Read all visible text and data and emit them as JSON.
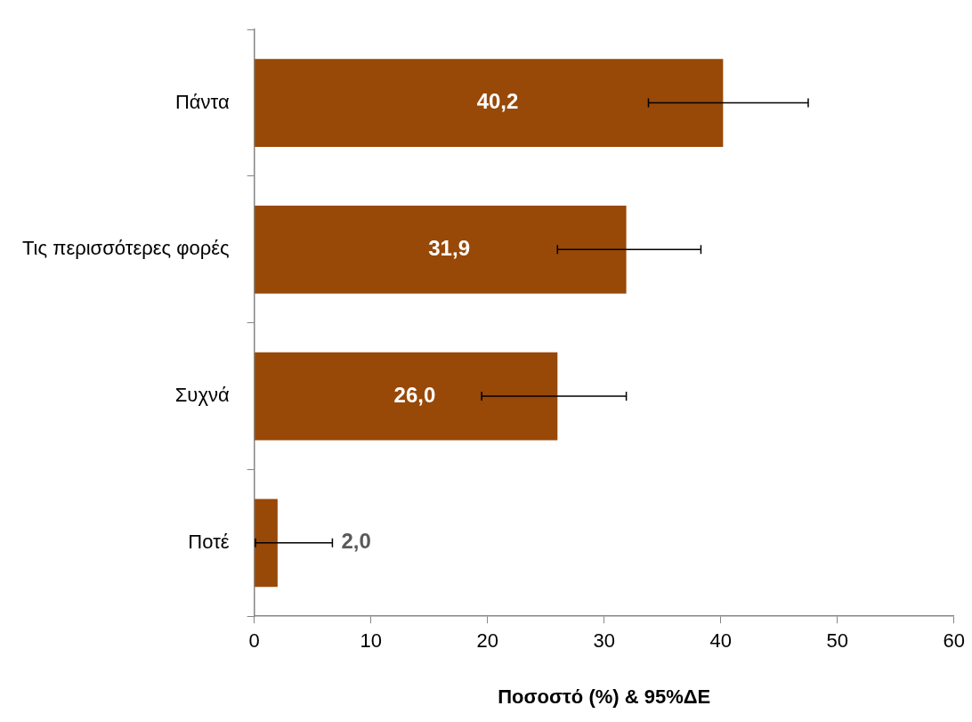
{
  "chart_data": {
    "type": "bar",
    "orientation": "horizontal",
    "xlabel": "Ποσοστό (%) & 95%ΔΕ",
    "categories": [
      "Πάντα",
      "Τις περισσότερες φορές",
      "Συχνά",
      "Ποτέ"
    ],
    "values": [
      40.2,
      31.9,
      26.0,
      2.0
    ],
    "value_labels": [
      "40,2",
      "31,9",
      "26,0",
      "2,0"
    ],
    "errors": [
      [
        33.8,
        47.5
      ],
      [
        26.0,
        38.3
      ],
      [
        19.5,
        31.9
      ],
      [
        0.1,
        6.7
      ]
    ],
    "color": "#984807",
    "xlim": [
      0,
      60
    ],
    "xticks": [
      0,
      10,
      20,
      30,
      40,
      50,
      60
    ],
    "grid": false,
    "legend": false
  }
}
